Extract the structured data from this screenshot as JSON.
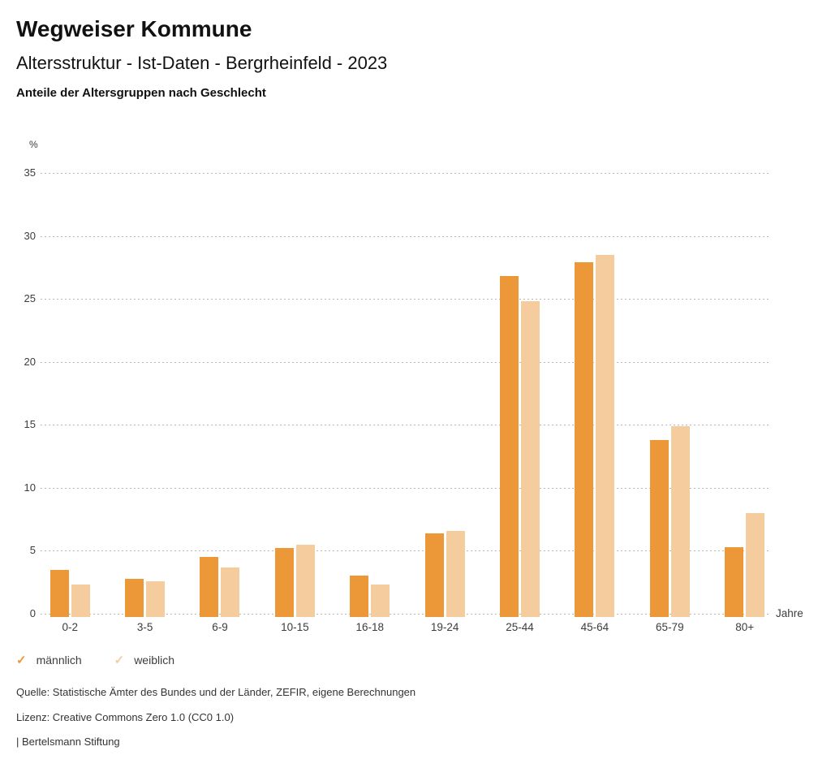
{
  "header": {
    "title": "Wegweiser Kommune",
    "subtitle": "Altersstruktur - Ist-Daten - Bergrheinfeld - 2023",
    "description": "Anteile der Altersgruppen nach Geschlecht"
  },
  "chart_data": {
    "type": "bar",
    "title": "Anteile der Altersgruppen nach Geschlecht",
    "categories": [
      "0-2",
      "3-5",
      "6-9",
      "10-15",
      "16-18",
      "19-24",
      "25-44",
      "45-64",
      "65-79",
      "80+"
    ],
    "series": [
      {
        "name": "männlich",
        "color": "#EC9838",
        "values": [
          3.5,
          2.8,
          4.5,
          5.2,
          3.0,
          6.4,
          26.8,
          27.9,
          13.8,
          5.3
        ]
      },
      {
        "name": "weiblich",
        "color": "#F5CC9E",
        "values": [
          2.3,
          2.6,
          3.7,
          5.5,
          2.3,
          6.6,
          24.8,
          28.5,
          14.9,
          8.0
        ]
      }
    ],
    "xlabel": "Jahre",
    "ylabel": "%",
    "ylim": [
      0,
      35
    ],
    "ytick_step": 5,
    "yticks": [
      0,
      5,
      10,
      15,
      20,
      25,
      30,
      35
    ],
    "grid": "dotted horizontal",
    "legend_position": "bottom-left"
  },
  "legend": {
    "items": [
      {
        "glyph": "✓",
        "label": "männlich",
        "color": "#EC9838"
      },
      {
        "glyph": "✓",
        "label": "weiblich",
        "color": "#F5CC9E"
      }
    ]
  },
  "footer": {
    "source": "Quelle: Statistische Ämter des Bundes und der Länder, ZEFIR, eigene Berechnungen",
    "license": "Lizenz: Creative Commons Zero 1.0 (CC0 1.0)",
    "attribution": "| Bertelsmann Stiftung"
  },
  "colors": {
    "background": "#ffffff",
    "gridline": "#b8b8b8",
    "text": "#111111",
    "axis_text": "#3c3c3c"
  }
}
